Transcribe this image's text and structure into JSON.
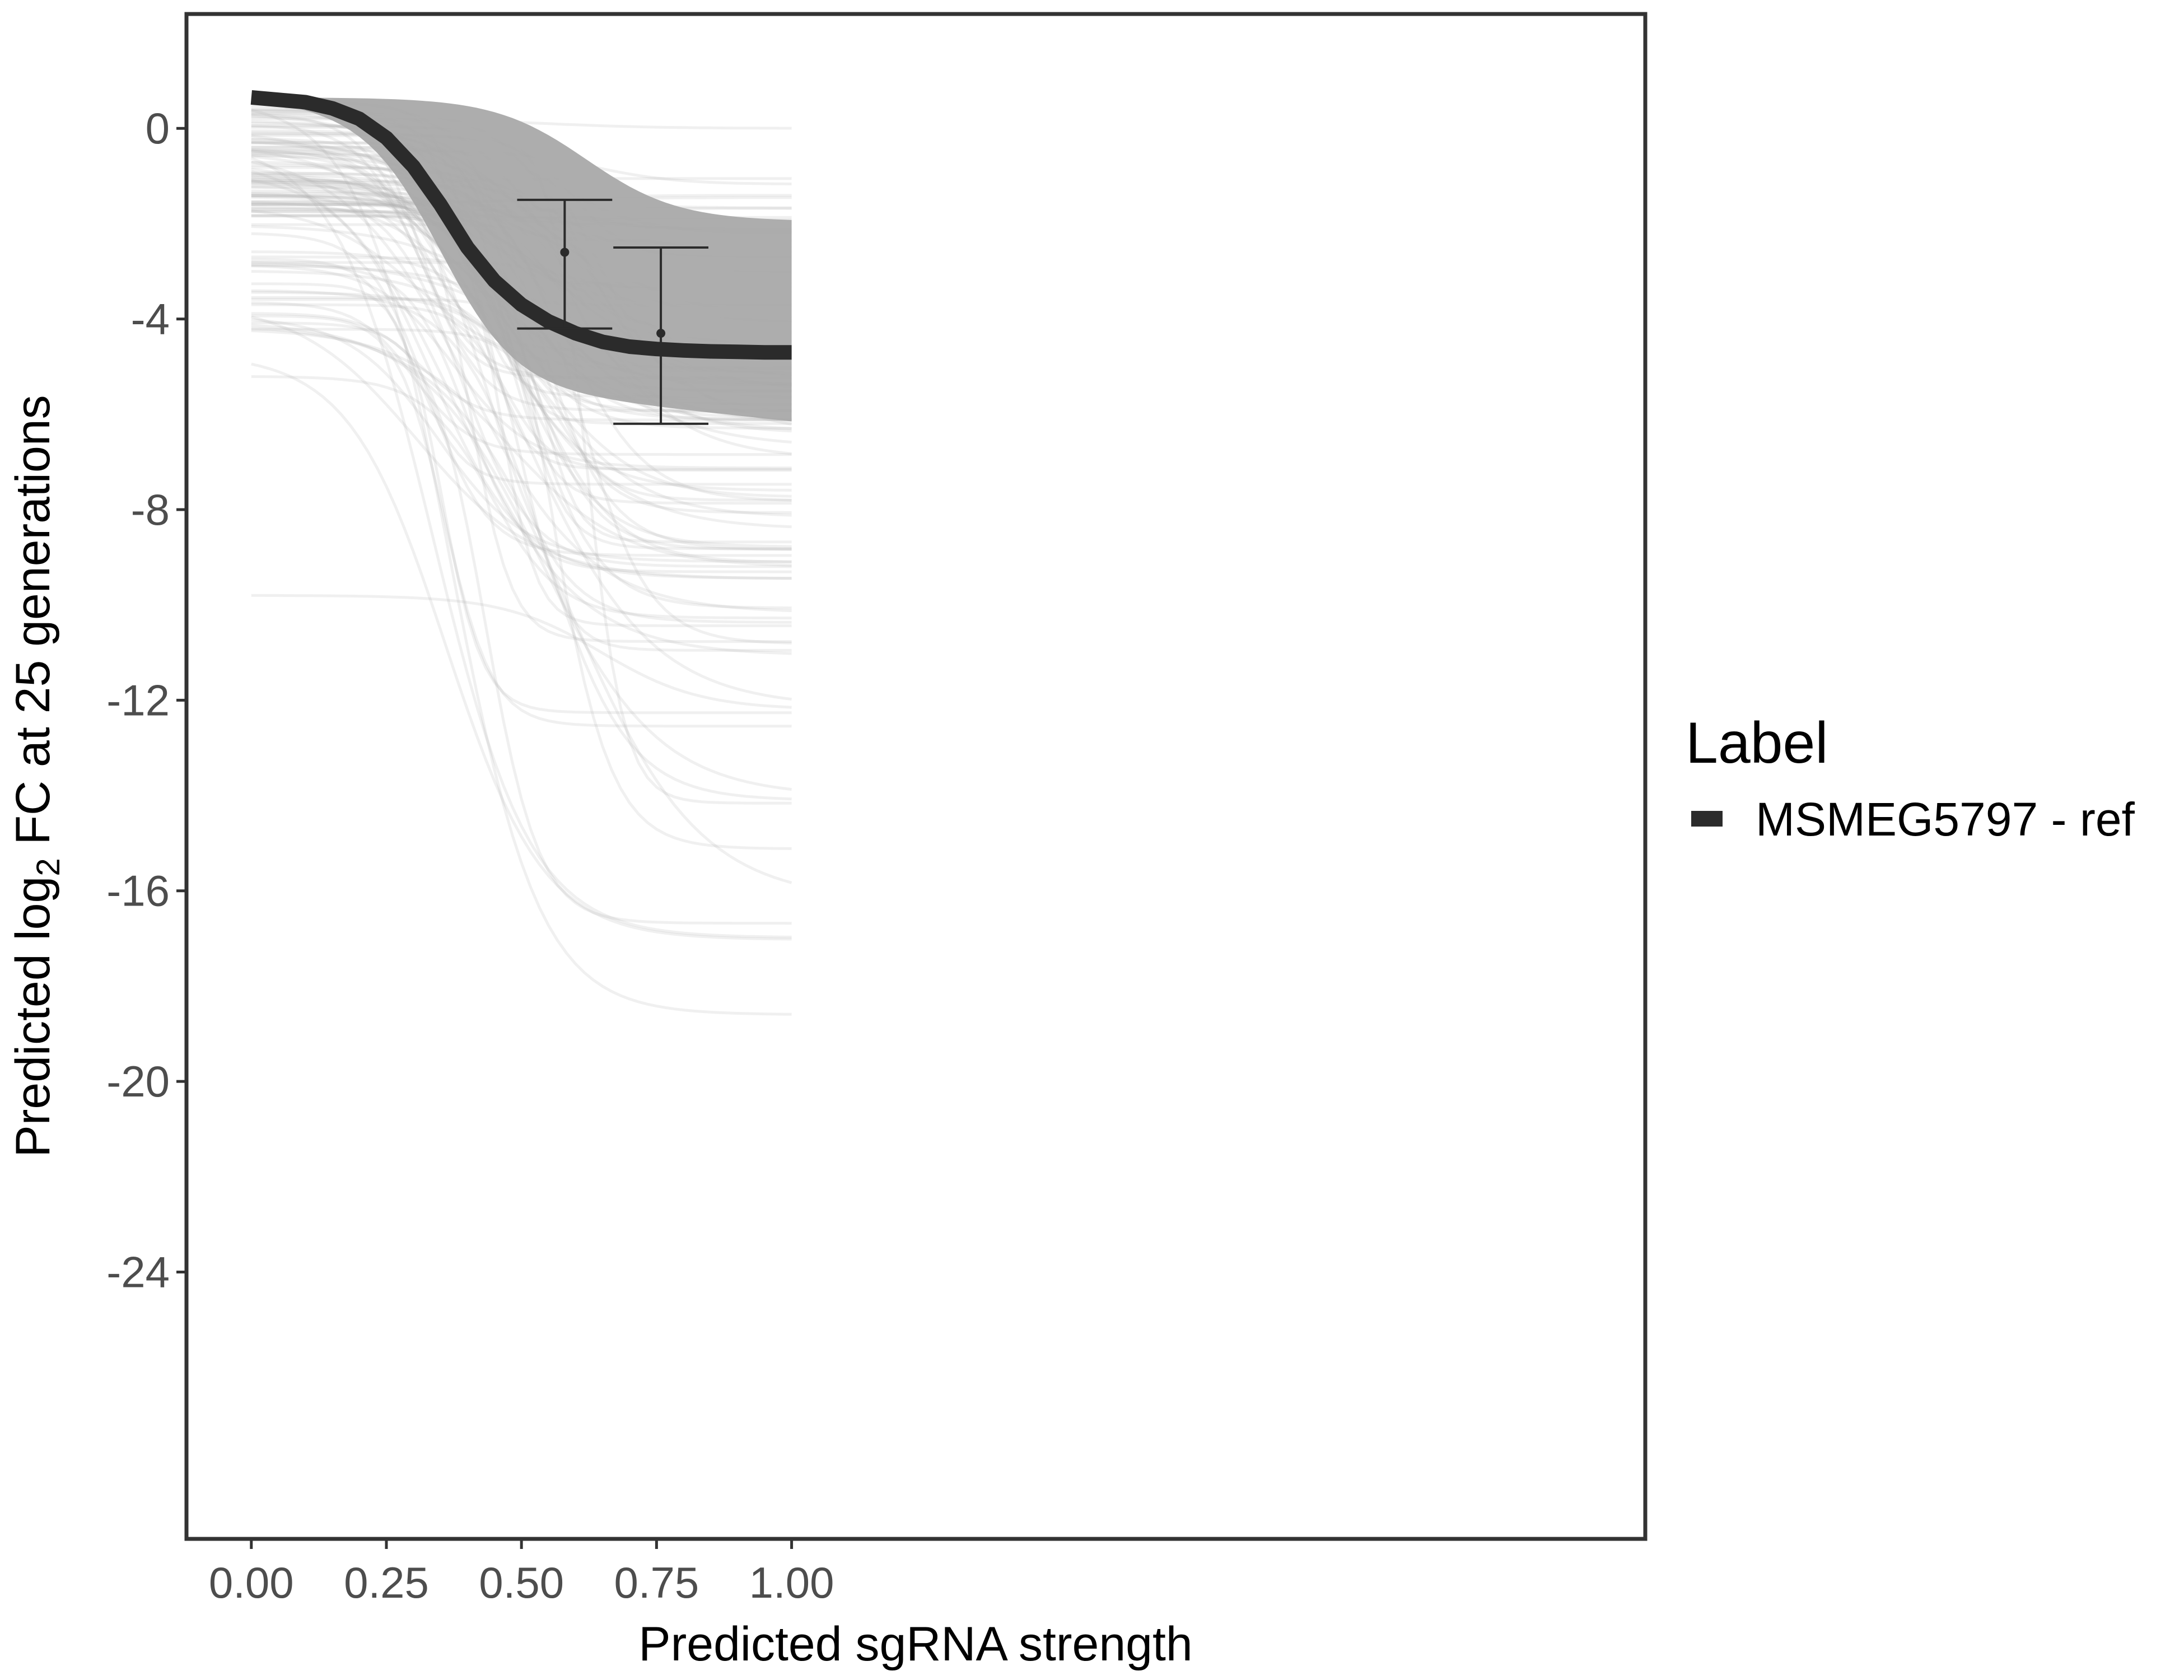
{
  "chart_data": {
    "type": "line",
    "xlabel": "Predicted sgRNA strength",
    "ylabel": {
      "prefix": "Predicted  log",
      "subscript": "2",
      "suffix": " FC at 25 generations"
    },
    "xlim": [
      -0.12,
      2.58
    ],
    "ylim": [
      -29.6,
      2.4
    ],
    "x_ticks": [
      "0.00",
      "0.25",
      "0.50",
      "0.75",
      "1.00"
    ],
    "x_tick_values": [
      0,
      0.25,
      0.5,
      0.75,
      1.0
    ],
    "y_ticks": [
      "0",
      "-4",
      "-8",
      "-12",
      "-16",
      "-20",
      "-24"
    ],
    "y_tick_values": [
      0,
      -4,
      -8,
      -12,
      -16,
      -20,
      -24
    ],
    "grid": false,
    "legend": {
      "title": "Label",
      "position": "right",
      "entries": [
        {
          "name": "MSMEG5797 - ref",
          "color": "#2b2b2b"
        }
      ]
    },
    "series": [
      {
        "name": "MSMEG5797 - ref",
        "color": "#2b2b2b",
        "x": [
          0,
          0.05,
          0.1,
          0.15,
          0.2,
          0.25,
          0.3,
          0.35,
          0.4,
          0.45,
          0.5,
          0.55,
          0.6,
          0.65,
          0.7,
          0.75,
          0.8,
          0.85,
          0.9,
          0.95,
          1.0
        ],
        "y": [
          0.65,
          0.6,
          0.55,
          0.42,
          0.2,
          -0.2,
          -0.8,
          -1.6,
          -2.5,
          -3.2,
          -3.7,
          -4.05,
          -4.3,
          -4.48,
          -4.58,
          -4.63,
          -4.66,
          -4.68,
          -4.69,
          -4.7,
          -4.7
        ]
      }
    ],
    "background_curves": {
      "color": "#aaaaaa",
      "count_drawn": 120,
      "start_range": [
        -9.8,
        0.65
      ],
      "end_range": [
        -18.6,
        0.0
      ]
    },
    "error_bars": [
      {
        "x": 0.58,
        "y": -2.6,
        "ymin": -4.2,
        "ymax": -1.5
      },
      {
        "x": 0.758,
        "y": -4.3,
        "ymin": -6.2,
        "ymax": -2.5
      }
    ]
  }
}
